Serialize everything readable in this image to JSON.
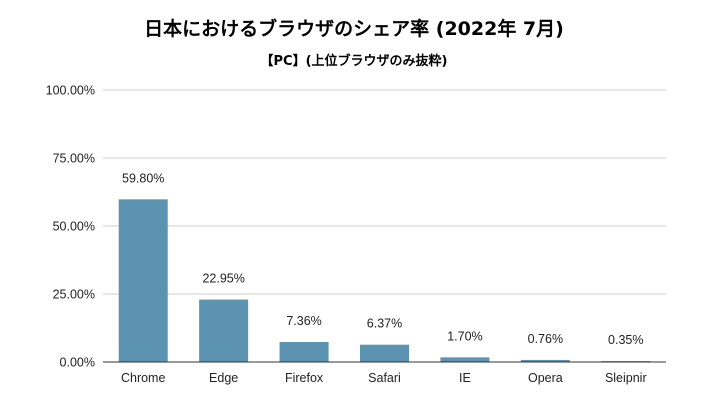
{
  "chart_data": {
    "type": "bar",
    "title": "日本におけるブラウザのシェア率 (2022年 7月)",
    "subtitle": "【PC】(上位ブラウザのみ抜粋)",
    "xlabel": "",
    "ylabel": "",
    "categories": [
      "Chrome",
      "Edge",
      "Firefox",
      "Safari",
      "IE",
      "Opera",
      "Sleipnir"
    ],
    "values": [
      59.8,
      22.95,
      7.36,
      6.37,
      1.7,
      0.76,
      0.35
    ],
    "data_labels": [
      "59.80%",
      "22.95%",
      "7.36%",
      "6.37%",
      "1.70%",
      "0.76%",
      "0.35%"
    ],
    "ylim": [
      0,
      100
    ],
    "yticks": [
      0,
      25,
      50,
      75,
      100
    ],
    "ytick_labels": [
      "0.00%",
      "25.00%",
      "50.00%",
      "75.00%",
      "100.00%"
    ],
    "grid": true,
    "legend": "none",
    "colors": {
      "bar": "#5b93b1",
      "grid": "#cccccc",
      "baseline": "#333333"
    }
  }
}
